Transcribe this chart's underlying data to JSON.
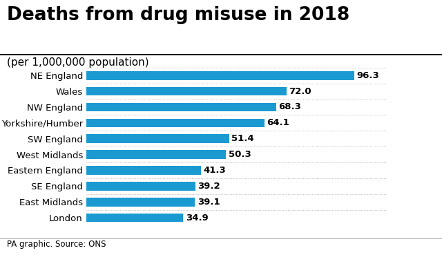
{
  "title": "Deaths from drug misuse in 2018",
  "subtitle": "(per 1,000,000 population)",
  "footer": "PA graphic. Source: ONS",
  "categories": [
    "NE England",
    "Wales",
    "NW England",
    "Yorkshire/Humber",
    "SW England",
    "West Midlands",
    "Eastern England",
    "SE England",
    "East Midlands",
    "London"
  ],
  "values": [
    96.3,
    72.0,
    68.3,
    64.1,
    51.4,
    50.3,
    41.3,
    39.2,
    39.1,
    34.9
  ],
  "bar_color": "#1b9ad2",
  "background_color": "#ffffff",
  "xlim": [
    0,
    108
  ],
  "title_fontsize": 19,
  "subtitle_fontsize": 11,
  "label_fontsize": 9.5,
  "value_fontsize": 9.5,
  "footer_fontsize": 8.5
}
